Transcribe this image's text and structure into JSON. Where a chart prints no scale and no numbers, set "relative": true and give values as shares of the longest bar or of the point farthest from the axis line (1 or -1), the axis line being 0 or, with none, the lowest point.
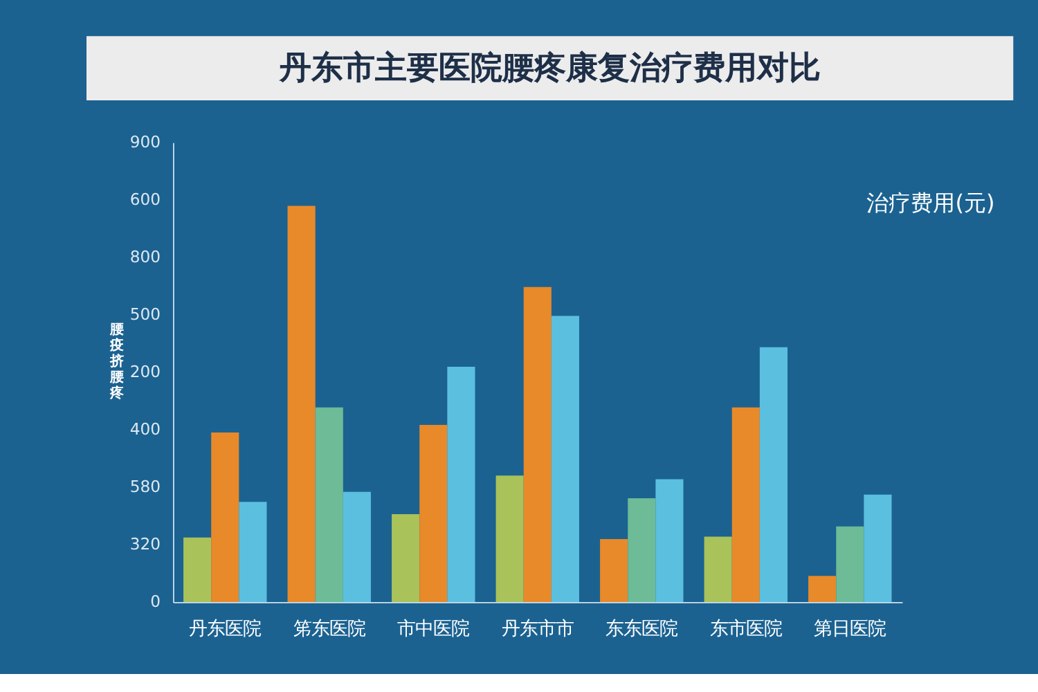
{
  "chart_data": {
    "type": "bar",
    "title": "丹东市主要医院腰疼康复治疗费用对比",
    "ylabel": "腰疫挤腰疼",
    "annotations": [
      "治疗费用(元)",
      "900",
      "600",
      "800",
      "500",
      "200",
      "400",
      "580",
      "320",
      "0"
    ],
    "categories": [
      "丹东医院",
      "笫东医院",
      "市中医院",
      "丹东市市",
      "东东医院",
      "东市医院",
      "第日医院"
    ],
    "relative": true,
    "series": [
      {
        "color": "#a9c25a",
        "values": [
          0.163,
          null,
          0.222,
          0.319,
          null,
          0.165,
          null
        ]
      },
      {
        "color": "#e8892a",
        "values": [
          0.428,
          1,
          0.447,
          0.795,
          0.159,
          0.491,
          0.066
        ]
      },
      {
        "color": "#6dbb97",
        "values": [
          null,
          0.491,
          null,
          null,
          0.262,
          null,
          0.191
        ]
      },
      {
        "color": "#5bbfe0",
        "values": [
          0.253,
          0.278,
          0.594,
          0.722,
          0.31,
          0.643,
          0.271
        ]
      }
    ],
    "grid": false,
    "legend": false
  }
}
